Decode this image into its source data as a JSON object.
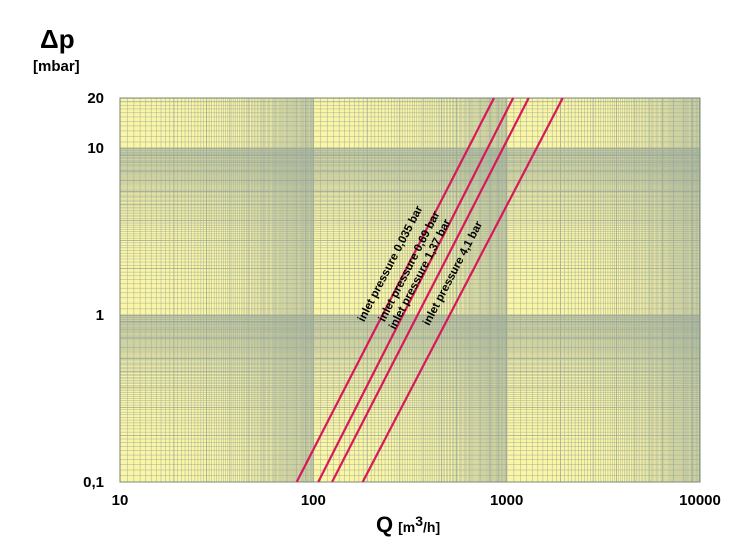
{
  "chart_data": {
    "type": "line",
    "x_scale": "log",
    "y_scale": "log",
    "xlim": [
      10,
      10000
    ],
    "ylim": [
      0.1,
      20
    ],
    "ylabel": "Δp",
    "ylabel_unit": "[mbar]",
    "xlabel": "Q",
    "xlabel_unit_prefix": "[m",
    "xlabel_unit_sup": "3",
    "xlabel_unit_suffix": "/h]",
    "x_ticks": [
      "10",
      "100",
      "1000",
      "10000"
    ],
    "x_tick_values": [
      10,
      100,
      1000,
      10000
    ],
    "y_ticks": [
      "0,1",
      "1",
      "10",
      "20"
    ],
    "y_tick_values": [
      0.1,
      1,
      10,
      20
    ],
    "grid": true,
    "background_color": "#fbf5a6",
    "grid_color": "#9aa89a",
    "line_color": "#d8185a",
    "series": [
      {
        "name": "inlet pressure 0,035 bar",
        "x": [
          82,
          860
        ],
        "y": [
          0.1,
          20
        ]
      },
      {
        "name": "inlet pressure 0,69 bar",
        "x": [
          106,
          1080
        ],
        "y": [
          0.1,
          20
        ]
      },
      {
        "name": "inlet pressure 1,37 bar",
        "x": [
          125,
          1300
        ],
        "y": [
          0.1,
          20
        ]
      },
      {
        "name": "inlet pressure 4,1 bar",
        "x": [
          180,
          1950
        ],
        "y": [
          0.1,
          20
        ]
      }
    ]
  }
}
